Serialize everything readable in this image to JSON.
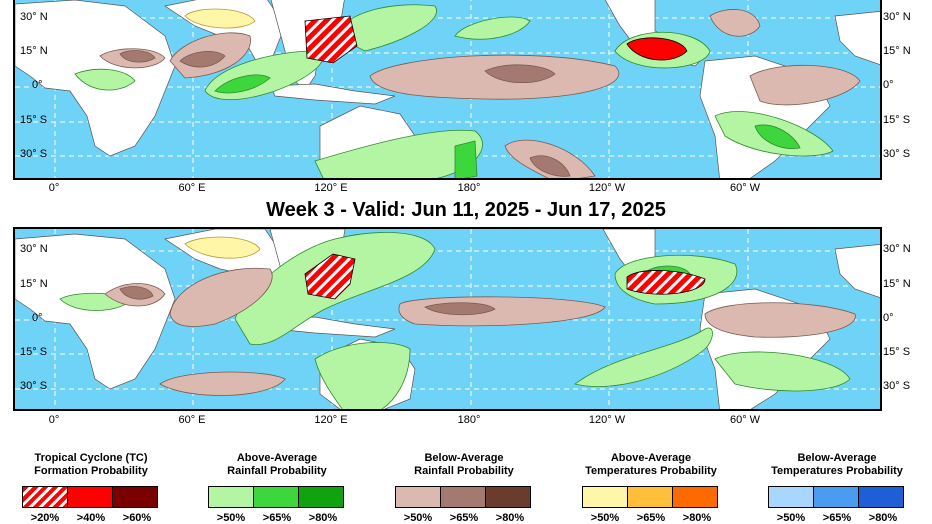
{
  "week3": {
    "title": "Week 3 - Valid: Jun 11, 2025 - Jun 17, 2025"
  },
  "axes": {
    "lat": [
      "30° N",
      "15° N",
      "0°",
      "15° S",
      "30° S"
    ],
    "lon": [
      "0°",
      "60° E",
      "120° E",
      "180°",
      "120° W",
      "60° W"
    ]
  },
  "legend": [
    {
      "title": [
        "Tropical Cyclone (TC)",
        "Formation Probability"
      ],
      "ticks": [
        ">20%",
        ">40%",
        ">60%"
      ],
      "colors": [
        "#ff0000",
        "#ff0000",
        "#7a0000"
      ],
      "hatched_first": true
    },
    {
      "title": [
        "Above-Average",
        "Rainfall Probability"
      ],
      "ticks": [
        ">50%",
        ">65%",
        ">80%"
      ],
      "colors": [
        "#b3f5a3",
        "#3dd63d",
        "#0fa30f"
      ],
      "hatched_first": false
    },
    {
      "title": [
        "Below-Average",
        "Rainfall Probability"
      ],
      "ticks": [
        ">50%",
        ">65%",
        ">80%"
      ],
      "colors": [
        "#dbb9b1",
        "#a47a70",
        "#6b3b2e"
      ],
      "hatched_first": false
    },
    {
      "title": [
        "Above-Average",
        "Temperatures Probability"
      ],
      "ticks": [
        ">50%",
        ">65%",
        ">80%"
      ],
      "colors": [
        "#fff6a8",
        "#ffbf3a",
        "#ff6a00"
      ],
      "hatched_first": false
    },
    {
      "title": [
        "Below-Average",
        "Temperatures Probability"
      ],
      "ticks": [
        ">50%",
        ">65%",
        ">80%"
      ],
      "colors": [
        "#a7d7ff",
        "#4a9cf0",
        "#1f5fd6"
      ],
      "hatched_first": false
    }
  ],
  "colors": {
    "ocean": "#6fd3f7",
    "land": "#ffffff",
    "tc_red": "#ff0000",
    "rain_above": "#b3f5a3",
    "rain_above_65": "#3dd63d",
    "rain_below": "#dbb9b1",
    "rain_below_65": "#a47a70",
    "temp_above": "#fff6a8"
  }
}
